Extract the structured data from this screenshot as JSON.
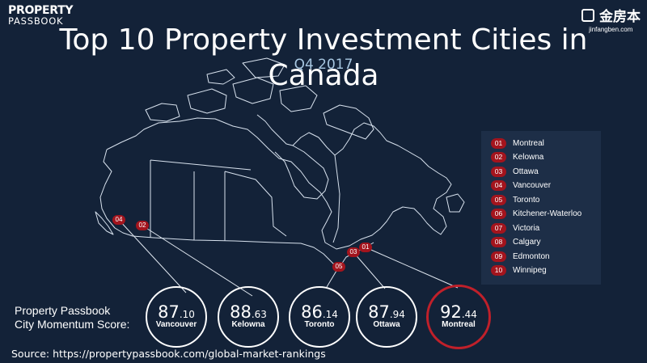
{
  "brand": {
    "line1": "PROPERTY",
    "line2": "PASSBOOK"
  },
  "partner": {
    "name": "金房本",
    "url": "jinfangben.com"
  },
  "title": "Top 10 Property Investment Cities in Canada",
  "subtitle": "Q4 2017",
  "legend": [
    {
      "num": "01",
      "city": "Montreal"
    },
    {
      "num": "02",
      "city": "Kelowna"
    },
    {
      "num": "03",
      "city": "Ottawa"
    },
    {
      "num": "04",
      "city": "Vancouver"
    },
    {
      "num": "05",
      "city": "Toronto"
    },
    {
      "num": "06",
      "city": "Kitchener-Waterloo"
    },
    {
      "num": "07",
      "city": "Victoria"
    },
    {
      "num": "08",
      "city": "Calgary"
    },
    {
      "num": "09",
      "city": "Edmonton"
    },
    {
      "num": "10",
      "city": "Winnipeg"
    }
  ],
  "markers": [
    {
      "num": "04",
      "city": "Vancouver"
    },
    {
      "num": "02",
      "city": "Kelowna"
    },
    {
      "num": "05",
      "city": "Toronto"
    },
    {
      "num": "03",
      "city": "Ottawa"
    },
    {
      "num": "01",
      "city": "Montreal"
    }
  ],
  "score_label": {
    "line1": "Property Passbook",
    "line2": "City Momentum Score:"
  },
  "scores": [
    {
      "int": "87",
      "dec": ".10",
      "city": "Vancouver"
    },
    {
      "int": "88",
      "dec": ".63",
      "city": "Kelowna"
    },
    {
      "int": "86",
      "dec": ".14",
      "city": "Toronto"
    },
    {
      "int": "87",
      "dec": ".94",
      "city": "Ottawa"
    },
    {
      "int": "92",
      "dec": ".44",
      "city": "Montreal"
    }
  ],
  "colors": {
    "background": "#132238",
    "marker": "#a3141d",
    "highlight": "#c0202a"
  },
  "source": "Source: https://propertypassbook.com/global-market-rankings"
}
